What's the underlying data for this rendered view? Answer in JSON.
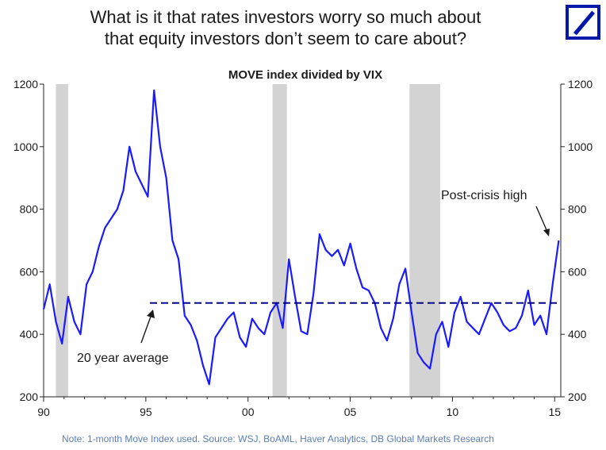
{
  "header": {
    "title_line1": "What is it that rates investors worry so much about",
    "title_line2": "that equity investors don’t seem to care about?",
    "logo_icon": "deutsche-bank-slash-logo"
  },
  "footnote": "Note: 1-month Move Index used. Source: WSJ, BoAML, Haver Analytics, DB Global Markets Research",
  "colors": {
    "series": "#1a1aff",
    "average": "#00008b",
    "recession": "#d3d3d3",
    "logo": "#0018a8"
  },
  "chart_data": {
    "type": "line",
    "title": "MOVE index divided by VIX",
    "xlabel": "",
    "ylabel": "",
    "xlim": [
      1990,
      2015.3
    ],
    "ylim": [
      200,
      1200
    ],
    "x_ticks": [
      1990,
      1995,
      2000,
      2005,
      2010,
      2015
    ],
    "x_tick_labels": [
      "90",
      "95",
      "00",
      "05",
      "10",
      "15"
    ],
    "y_ticks": [
      200,
      400,
      600,
      800,
      1000,
      1200
    ],
    "y_tick_labels": [
      "200",
      "400",
      "600",
      "800",
      "1000",
      "1200"
    ],
    "recessions": [
      [
        1990.6,
        1991.2
      ],
      [
        2001.2,
        2001.9
      ],
      [
        2007.9,
        2009.4
      ]
    ],
    "average": {
      "label": "20 year average",
      "value": 500,
      "x_start": 1995.2,
      "x_end": 2015.2
    },
    "annotations": [
      {
        "text": "Post-crisis high",
        "x": 2015.2,
        "y": 700
      },
      {
        "text": "20 year average",
        "x": 1995.4,
        "y": 500
      }
    ],
    "series": [
      {
        "name": "MOVE index divided by VIX",
        "x": [
          1990.0,
          1990.3,
          1990.6,
          1990.9,
          1991.2,
          1991.5,
          1991.8,
          1992.1,
          1992.4,
          1992.7,
          1993.0,
          1993.3,
          1993.6,
          1993.9,
          1994.2,
          1994.5,
          1994.8,
          1995.1,
          1995.4,
          1995.7,
          1996.0,
          1996.3,
          1996.6,
          1996.9,
          1997.2,
          1997.5,
          1997.8,
          1998.1,
          1998.4,
          1998.7,
          1999.0,
          1999.3,
          1999.6,
          1999.9,
          2000.2,
          2000.5,
          2000.8,
          2001.1,
          2001.4,
          2001.7,
          2002.0,
          2002.3,
          2002.6,
          2002.9,
          2003.2,
          2003.5,
          2003.8,
          2004.1,
          2004.4,
          2004.7,
          2005.0,
          2005.3,
          2005.6,
          2005.9,
          2006.2,
          2006.5,
          2006.8,
          2007.1,
          2007.4,
          2007.7,
          2008.0,
          2008.3,
          2008.6,
          2008.9,
          2009.2,
          2009.5,
          2009.8,
          2010.1,
          2010.4,
          2010.7,
          2011.0,
          2011.3,
          2011.6,
          2011.9,
          2012.2,
          2012.5,
          2012.8,
          2013.1,
          2013.4,
          2013.7,
          2014.0,
          2014.3,
          2014.6,
          2014.9,
          2015.2
        ],
        "values": [
          480,
          560,
          440,
          370,
          520,
          440,
          400,
          560,
          600,
          680,
          740,
          770,
          800,
          860,
          1000,
          920,
          880,
          840,
          1180,
          1000,
          900,
          700,
          640,
          460,
          430,
          380,
          300,
          240,
          390,
          420,
          450,
          470,
          390,
          360,
          450,
          420,
          400,
          470,
          500,
          420,
          640,
          520,
          410,
          400,
          530,
          720,
          670,
          650,
          670,
          620,
          690,
          610,
          550,
          540,
          500,
          420,
          380,
          450,
          560,
          610,
          470,
          340,
          310,
          290,
          400,
          440,
          360,
          470,
          520,
          440,
          420,
          400,
          450,
          500,
          470,
          430,
          410,
          420,
          460,
          540,
          430,
          460,
          400,
          560,
          700
        ]
      }
    ]
  }
}
